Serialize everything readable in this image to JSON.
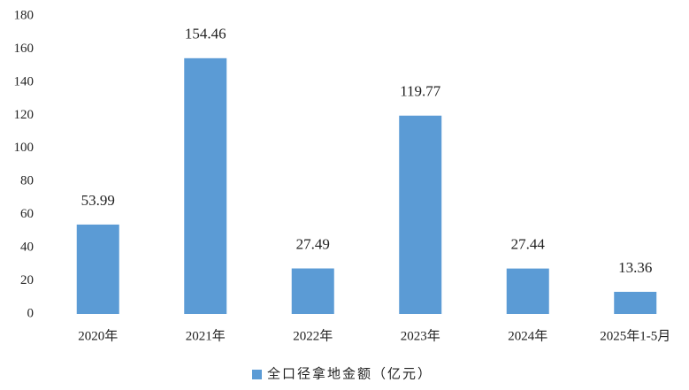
{
  "chart_data": {
    "type": "bar",
    "categories": [
      "2020年",
      "2021年",
      "2022年",
      "2023年",
      "2024年",
      "2025年1-5月"
    ],
    "series": [
      {
        "name": "全口径拿地金额（亿元）",
        "color": "#5b9bd5",
        "values": [
          53.99,
          154.46,
          27.49,
          119.77,
          27.44,
          13.36
        ]
      }
    ],
    "ylim": [
      0,
      180
    ],
    "yticks": [
      0,
      20,
      40,
      60,
      80,
      100,
      120,
      140,
      160,
      180
    ],
    "grid": false,
    "legend": "bottom"
  }
}
